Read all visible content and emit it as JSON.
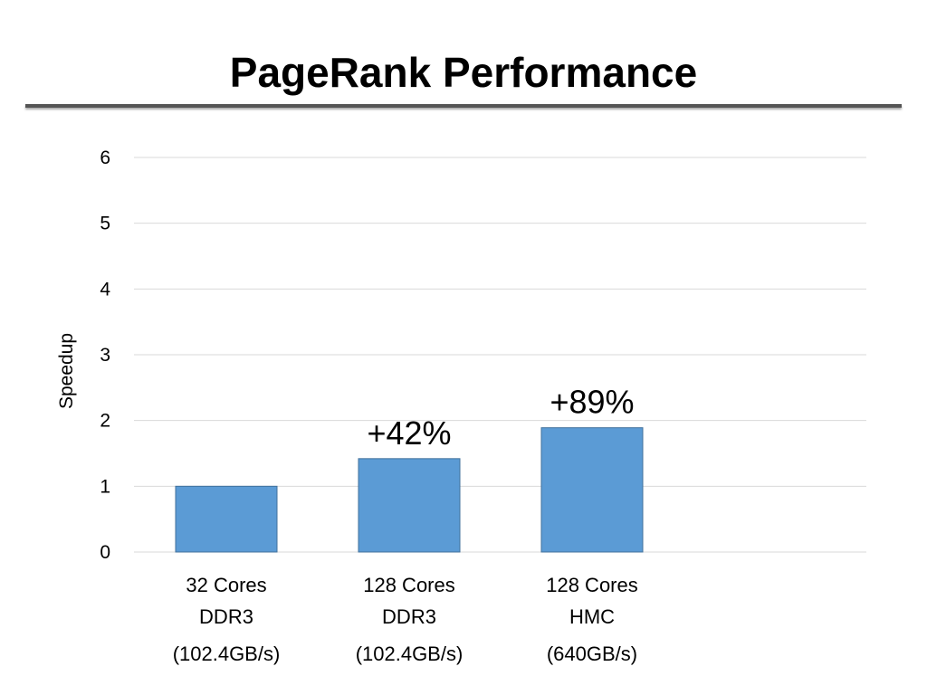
{
  "slide": {
    "title": "PageRank Performance"
  },
  "colors": {
    "bar_fill": "#5B9BD5",
    "bar_stroke": "#41719C",
    "grid": "#D9D9D9",
    "title_rule": "#555555"
  },
  "chart_data": {
    "type": "bar",
    "title": "",
    "xlabel": "",
    "ylabel": "Speedup",
    "ylim": [
      0,
      6
    ],
    "yticks": [
      "0",
      "1",
      "2",
      "3",
      "4",
      "5",
      "6"
    ],
    "grid": true,
    "legend": "none",
    "categories": [
      [
        "32 Cores",
        "DDR3",
        "(102.4GB/s)"
      ],
      [
        "128 Cores",
        "DDR3",
        "(102.4GB/s)"
      ],
      [
        "128 Cores",
        "HMC",
        "(640GB/s)"
      ]
    ],
    "values": [
      1.0,
      1.42,
      1.89
    ],
    "data_labels": [
      "",
      "+42%",
      "+89%"
    ]
  }
}
